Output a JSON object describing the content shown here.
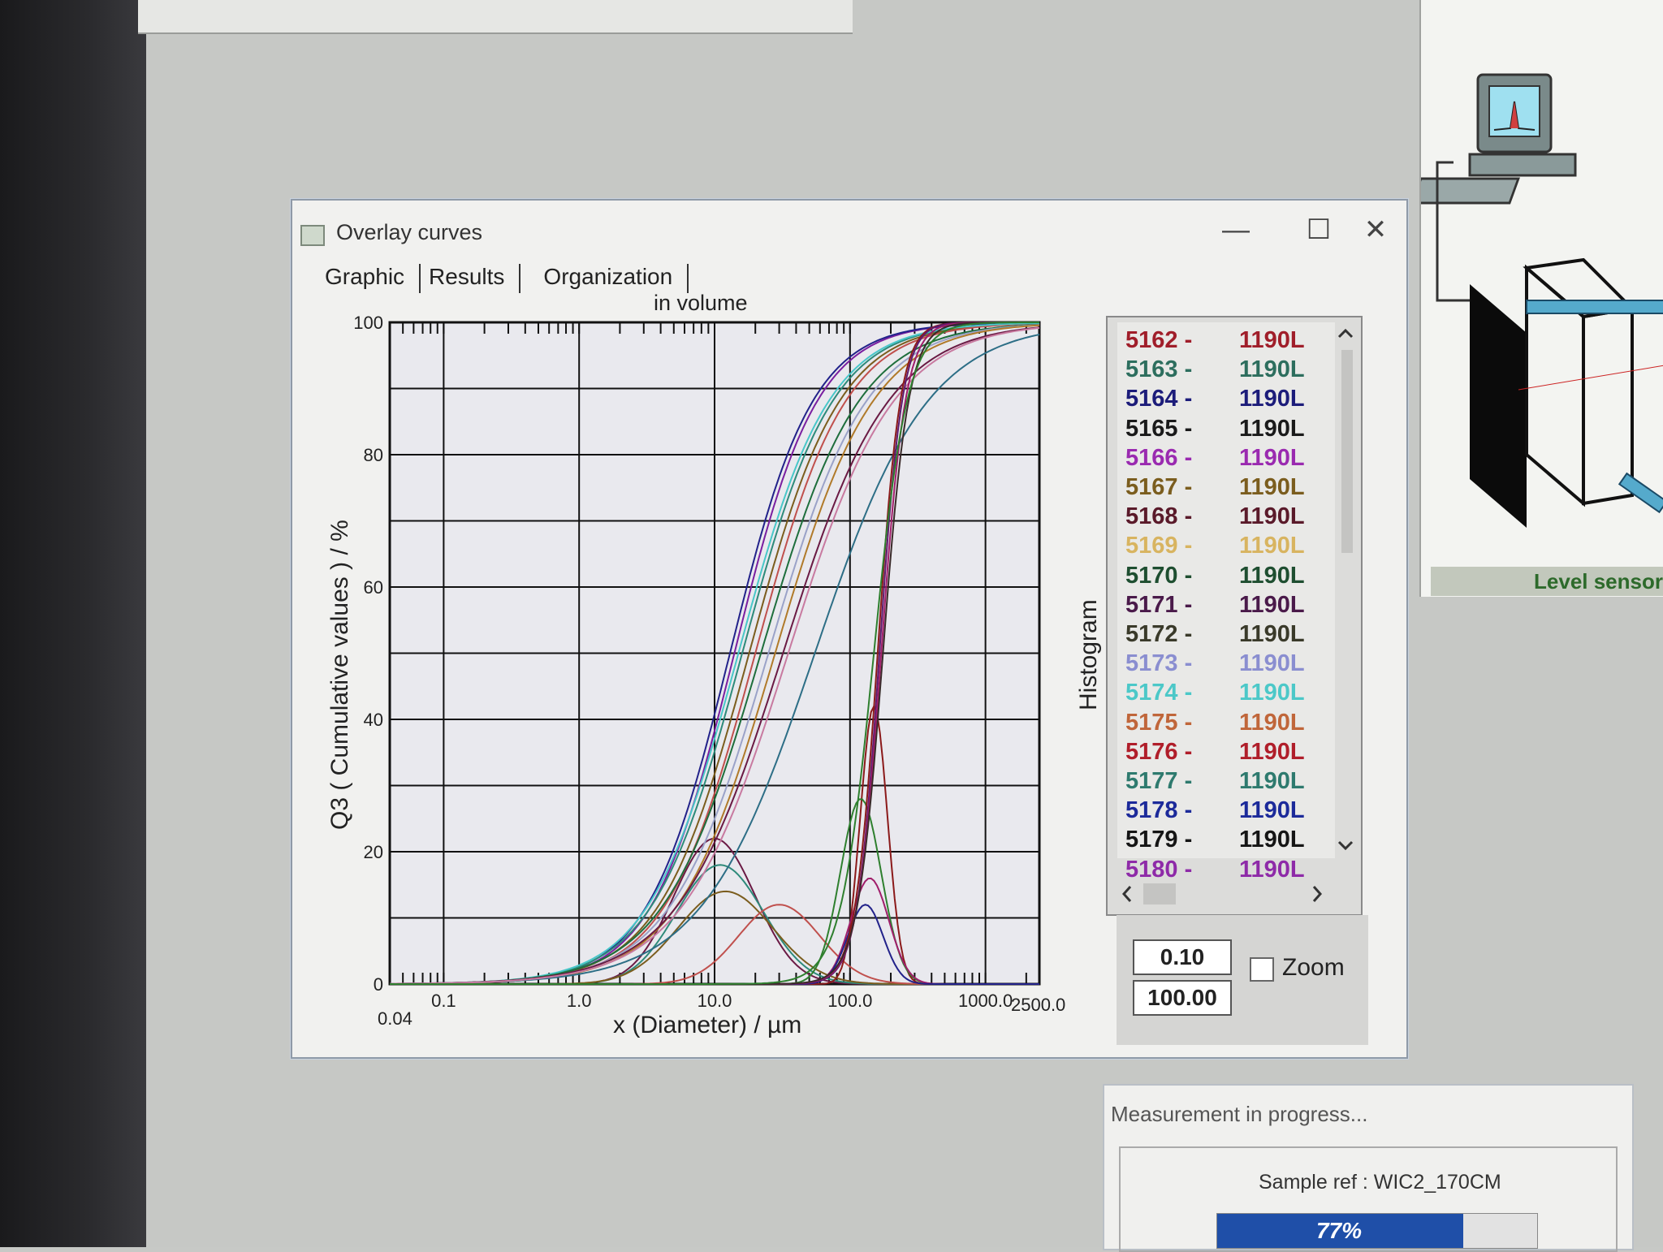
{
  "dialog": {
    "title": "Overlay curves",
    "tabs": [
      "Graphic",
      "Results",
      "Organization"
    ],
    "window_buttons": {
      "minimize": "—",
      "maximize": "☐",
      "close": "✕"
    }
  },
  "chart_data": {
    "type": "line",
    "title": "in volume",
    "xlabel": "x (Diameter) / µm",
    "ylabel": "Q3 ( Cumulative values ) / %",
    "side_label": "Histogram",
    "x_scale": "log",
    "xlim": [
      0.04,
      2500.0
    ],
    "ylim": [
      0,
      100
    ],
    "x_ticks": [
      "0.1",
      "1.0",
      "10.0",
      "100.0",
      "1000.0"
    ],
    "x_end_labels": {
      "min": "0.04",
      "max": "2500.0"
    },
    "y_ticks": [
      "0",
      "20",
      "40",
      "60",
      "80",
      "100"
    ],
    "grid": true,
    "cumulative_series": [
      {
        "color": "#7a1fa0",
        "d50": 14,
        "width": 0.55
      },
      {
        "color": "#22228a",
        "d50": 13,
        "width": 0.55
      },
      {
        "color": "#2e8a7a",
        "d50": 16,
        "width": 0.6
      },
      {
        "color": "#7b5d1e",
        "d50": 18,
        "width": 0.6
      },
      {
        "color": "#c0504d",
        "d50": 20,
        "width": 0.6
      },
      {
        "color": "#48c7c9",
        "d50": 15,
        "width": 0.6
      },
      {
        "color": "#1e6e3c",
        "d50": 22,
        "width": 0.65
      },
      {
        "color": "#9aa2c8",
        "d50": 25,
        "width": 0.65
      },
      {
        "color": "#b07a2a",
        "d50": 28,
        "width": 0.65
      },
      {
        "color": "#6a1a44",
        "d50": 32,
        "width": 0.7
      },
      {
        "color": "#2d6e86",
        "d50": 55,
        "width": 0.75
      },
      {
        "color": "#c87aa0",
        "d50": 35,
        "width": 0.7
      },
      {
        "color": "#8b1a1a",
        "d50": 160,
        "width": 0.15
      },
      {
        "color": "#5e1b6e",
        "d50": 165,
        "width": 0.15
      },
      {
        "color": "#a01e6a",
        "d50": 170,
        "width": 0.16
      },
      {
        "color": "#3a2a2a",
        "d50": 175,
        "width": 0.17
      },
      {
        "color": "#2e7f2e",
        "d50": 150,
        "width": 0.22
      }
    ],
    "histogram_series": [
      {
        "color": "#6a1a44",
        "peak_x": 10,
        "peak_y": 22,
        "width": 0.3
      },
      {
        "color": "#2e8a7a",
        "peak_x": 11,
        "peak_y": 18,
        "width": 0.32
      },
      {
        "color": "#7b5d1e",
        "peak_x": 12,
        "peak_y": 14,
        "width": 0.35
      },
      {
        "color": "#c0504d",
        "peak_x": 30,
        "peak_y": 12,
        "width": 0.3
      },
      {
        "color": "#8b1a1a",
        "peak_x": 150,
        "peak_y": 42,
        "width": 0.1
      },
      {
        "color": "#2e7f2e",
        "peak_x": 120,
        "peak_y": 28,
        "width": 0.15
      },
      {
        "color": "#a01e6a",
        "peak_x": 140,
        "peak_y": 16,
        "width": 0.14
      },
      {
        "color": "#22228a",
        "peak_x": 130,
        "peak_y": 12,
        "width": 0.13
      }
    ]
  },
  "legend": {
    "items": [
      {
        "id": "5162 -",
        "code": "1190L",
        "color": "#a01e2a"
      },
      {
        "id": "5163 -",
        "code": "1190L",
        "color": "#2d6e5e"
      },
      {
        "id": "5164 -",
        "code": "1190L",
        "color": "#1c1c7a"
      },
      {
        "id": "5165 -",
        "code": "1190L",
        "color": "#1a1a1a"
      },
      {
        "id": "5166 -",
        "code": "1190L",
        "color": "#9a2ab0"
      },
      {
        "id": "5167 -",
        "code": "1190L",
        "color": "#7b5d1e"
      },
      {
        "id": "5168 -",
        "code": "1190L",
        "color": "#5a1a2a"
      },
      {
        "id": "5169 -",
        "code": "1190L",
        "color": "#d8b460"
      },
      {
        "id": "5170 -",
        "code": "1190L",
        "color": "#1e4e30"
      },
      {
        "id": "5171 -",
        "code": "1190L",
        "color": "#4a1a4a"
      },
      {
        "id": "5172 -",
        "code": "1190L",
        "color": "#3a3a2a"
      },
      {
        "id": "5173 -",
        "code": "1190L",
        "color": "#8a8ed0"
      },
      {
        "id": "5174 -",
        "code": "1190L",
        "color": "#4cc8c8"
      },
      {
        "id": "5175 -",
        "code": "1190L",
        "color": "#c0663a"
      },
      {
        "id": "5176 -",
        "code": "1190L",
        "color": "#b01e2a"
      },
      {
        "id": "5177 -",
        "code": "1190L",
        "color": "#2e7a6e"
      },
      {
        "id": "5178 -",
        "code": "1190L",
        "color": "#1c2a9a"
      },
      {
        "id": "5179 -",
        "code": "1190L",
        "color": "#151515"
      },
      {
        "id": "5180 -",
        "code": "1190L",
        "color": "#8e2aa8"
      }
    ]
  },
  "zoom": {
    "min": "0.10",
    "max": "100.00",
    "label": "Zoom",
    "checked": false
  },
  "side_panel": {
    "label": "Level sensor"
  },
  "progress": {
    "title": "Measurement in progress...",
    "sample_ref": "Sample ref : WIC2_170CM",
    "percent": 77,
    "percent_label": "77%"
  }
}
